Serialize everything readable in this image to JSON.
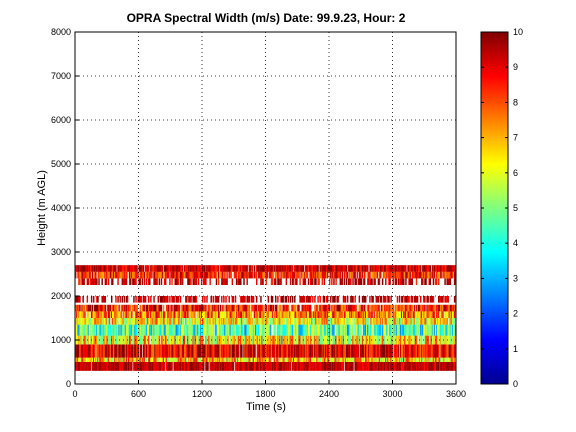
{
  "chart_data": {
    "type": "heatmap",
    "title": "OPRA Spectral Width (m/s)  Date: 99.9.23, Hour: 2",
    "xlabel": "Time (s)",
    "ylabel": "Height (m AGL)",
    "xlim": [
      0,
      3600
    ],
    "ylim": [
      0,
      8000
    ],
    "xticks": [
      "0",
      "600",
      "1200",
      "1800",
      "2400",
      "3000",
      "3600"
    ],
    "yticks": [
      "0",
      "1000",
      "2000",
      "3000",
      "4000",
      "5000",
      "6000",
      "7000",
      "8000"
    ],
    "grid": true,
    "grid_style": "dotted",
    "colorbar": {
      "colormap": "jet",
      "range": [
        0,
        10
      ],
      "ticks": [
        "0",
        "1",
        "2",
        "3",
        "4",
        "5",
        "6",
        "7",
        "8",
        "9",
        "10"
      ]
    },
    "layers": [
      {
        "y0": 300,
        "y1": 500,
        "mean": 9.4,
        "spread": 0.5,
        "coverage": 0.98
      },
      {
        "y0": 500,
        "y1": 600,
        "mean": 6.8,
        "spread": 1.2,
        "coverage": 0.98
      },
      {
        "y0": 600,
        "y1": 900,
        "mean": 9.0,
        "spread": 0.9,
        "coverage": 0.97
      },
      {
        "y0": 900,
        "y1": 1100,
        "mean": 6.5,
        "spread": 1.3,
        "coverage": 0.97
      },
      {
        "y0": 1100,
        "y1": 1350,
        "mean": 4.4,
        "spread": 1.2,
        "coverage": 0.97
      },
      {
        "y0": 1350,
        "y1": 1500,
        "mean": 6.4,
        "spread": 1.1,
        "coverage": 0.97
      },
      {
        "y0": 1500,
        "y1": 1650,
        "mean": 7.5,
        "spread": 1.1,
        "coverage": 0.95
      },
      {
        "y0": 1650,
        "y1": 1800,
        "mean": 8.6,
        "spread": 0.9,
        "coverage": 0.85
      },
      {
        "y0": 1850,
        "y1": 2000,
        "mean": 9.4,
        "spread": 0.5,
        "coverage": 0.5
      },
      {
        "y0": 2250,
        "y1": 2400,
        "mean": 9.2,
        "spread": 0.6,
        "coverage": 0.55
      },
      {
        "y0": 2400,
        "y1": 2550,
        "mean": 8.4,
        "spread": 0.8,
        "coverage": 0.9
      },
      {
        "y0": 2550,
        "y1": 2700,
        "mean": 9.2,
        "spread": 0.6,
        "coverage": 0.95
      }
    ]
  }
}
